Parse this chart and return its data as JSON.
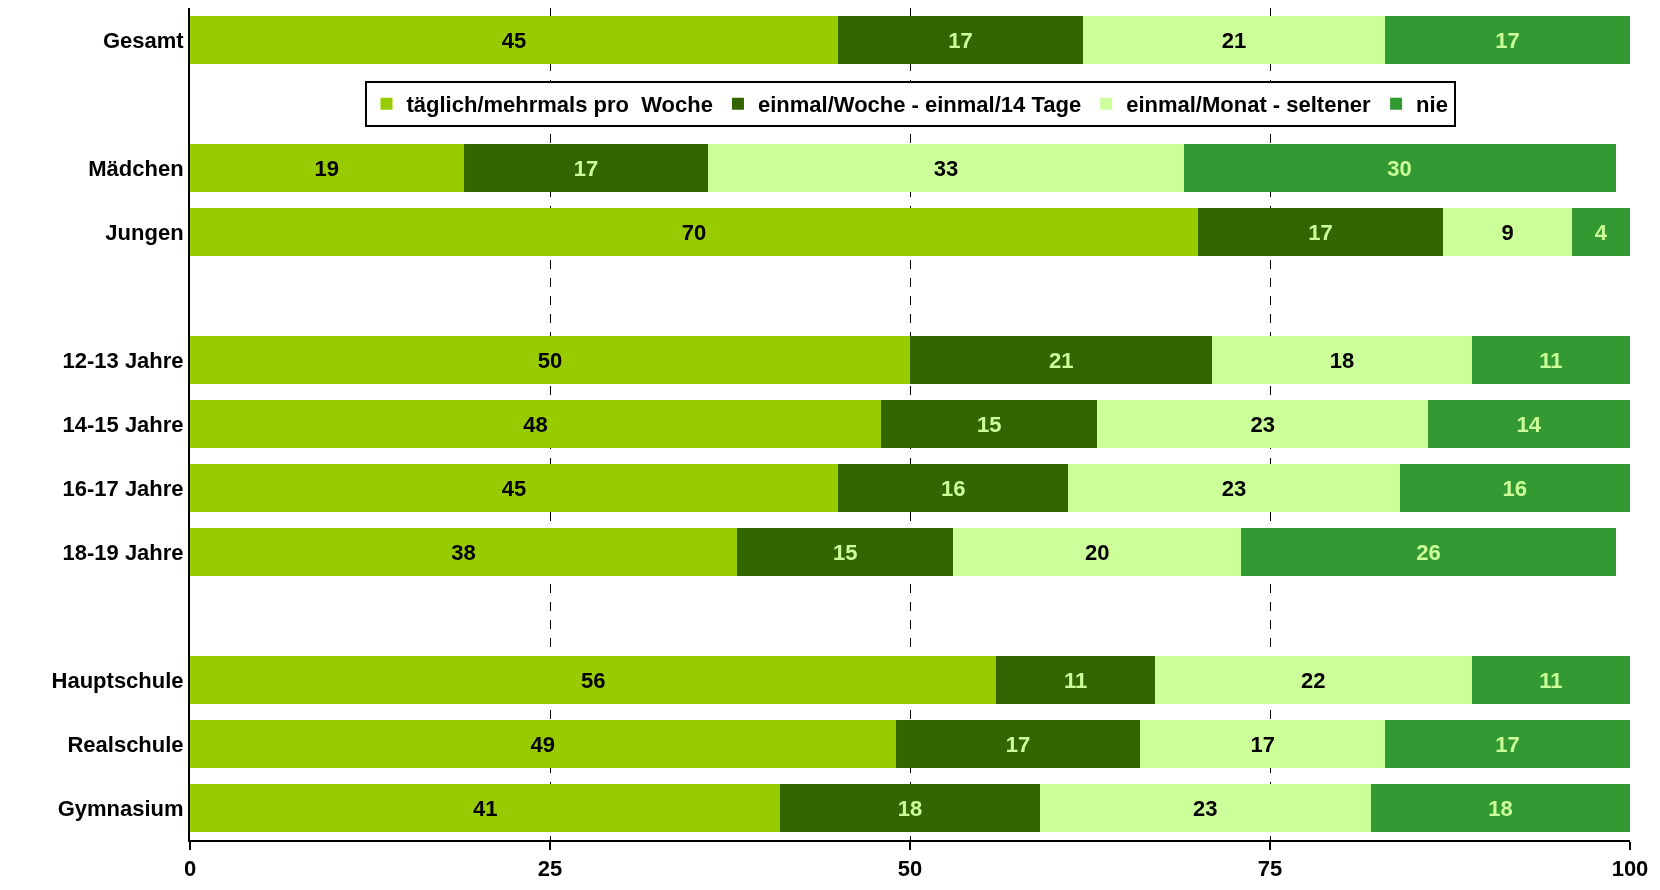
{
  "chart_data": {
    "type": "bar",
    "orientation": "horizontal",
    "stacked": true,
    "data_labels": true,
    "grid": "x",
    "legend": "top",
    "categories": [
      "Gesamt",
      null,
      "Mädchen",
      "Jungen",
      null,
      "12-13 Jahre",
      "14-15 Jahre",
      "16-17 Jahre",
      "18-19 Jahre",
      null,
      "Hauptschule",
      "Realschule",
      "Gymnasium"
    ],
    "series": [
      {
        "name": "täglich/mehrmals pro  Woche",
        "color": "#99cc00",
        "values": [
          45,
          null,
          19,
          70,
          null,
          50,
          48,
          45,
          38,
          null,
          56,
          49,
          41
        ]
      },
      {
        "name": "einmal/Woche - einmal/14 Tage",
        "color": "#336600",
        "values": [
          17,
          null,
          17,
          17,
          null,
          21,
          15,
          16,
          15,
          null,
          11,
          17,
          18
        ]
      },
      {
        "name": "einmal/Monat - seltener",
        "color": "#ccff99",
        "values": [
          21,
          null,
          33,
          9,
          null,
          18,
          23,
          23,
          20,
          null,
          22,
          17,
          23
        ]
      },
      {
        "name": "nie",
        "color": "#339933",
        "values": [
          17,
          null,
          30,
          4,
          null,
          11,
          14,
          16,
          26,
          null,
          11,
          17,
          18
        ]
      }
    ],
    "xlim": [
      0,
      100
    ],
    "xticks": [
      0,
      25,
      50,
      75,
      100
    ]
  }
}
